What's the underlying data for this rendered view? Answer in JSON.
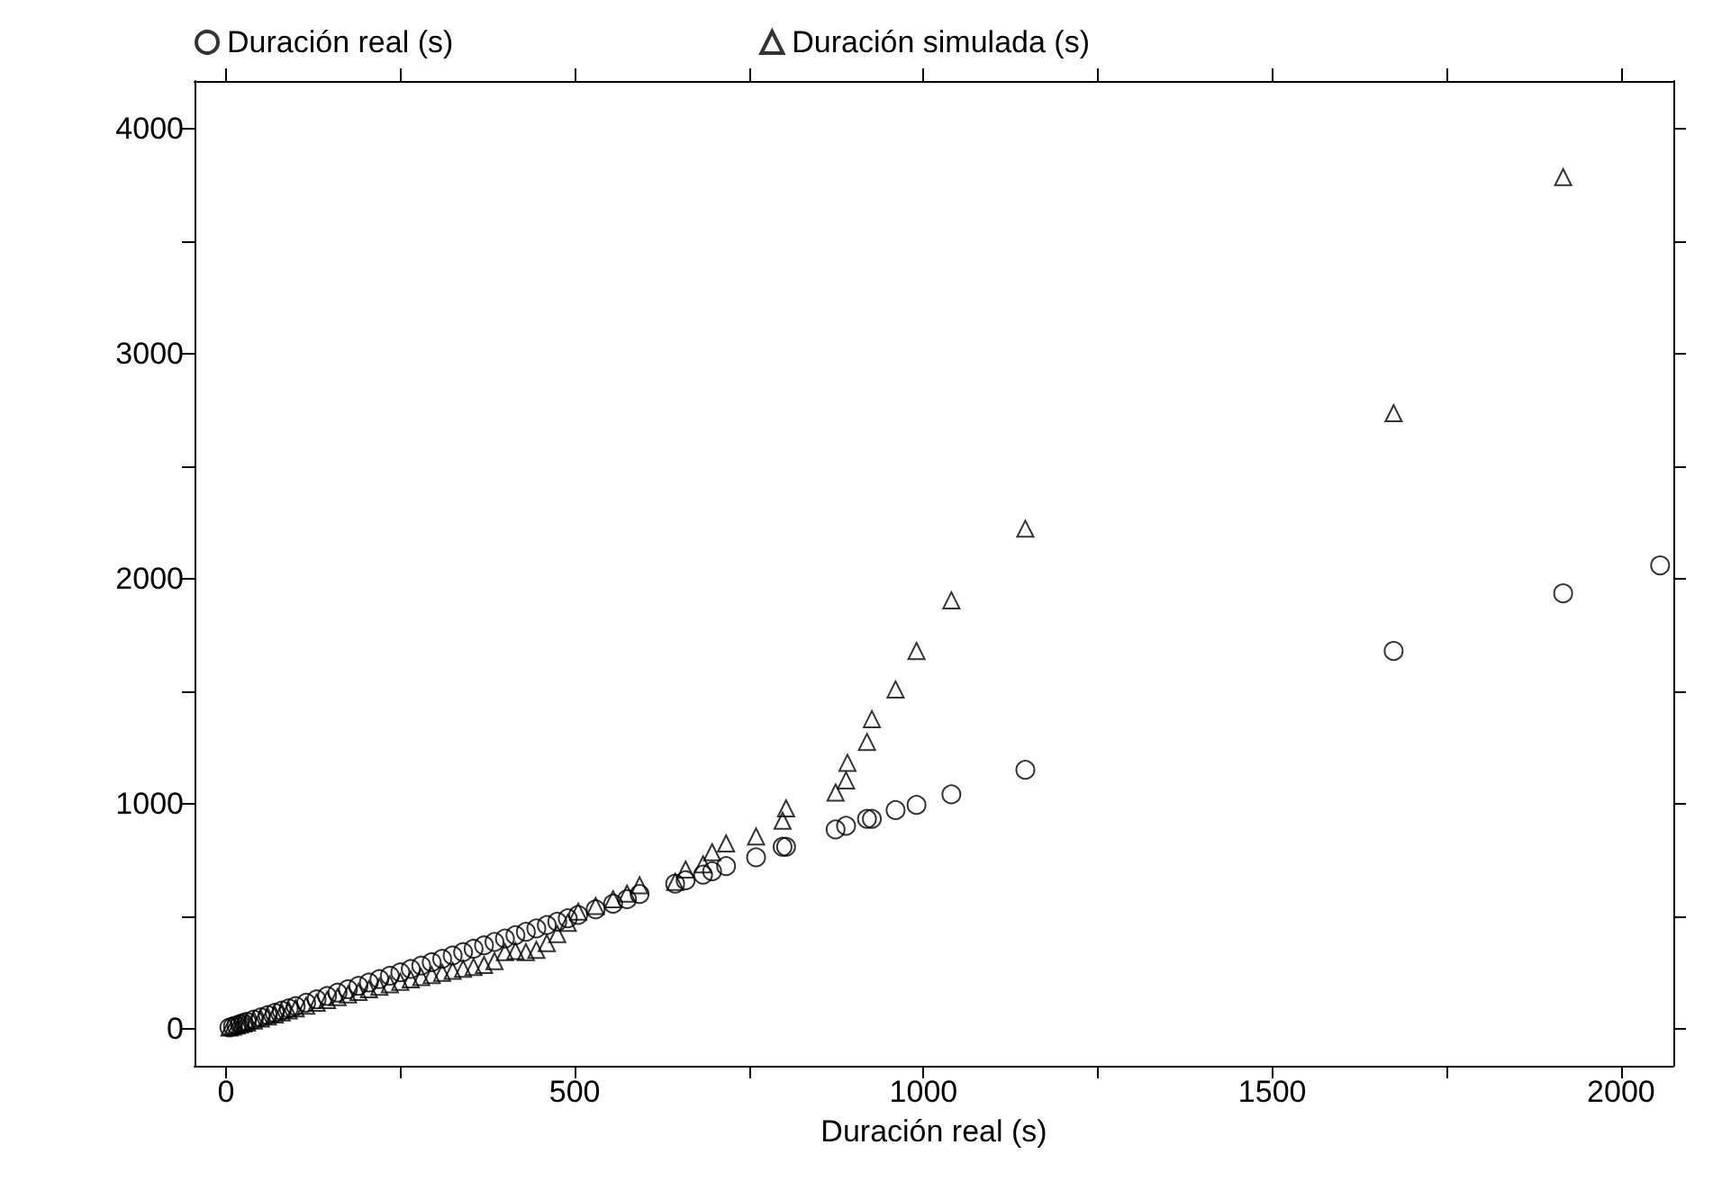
{
  "chart_data": {
    "type": "scatter",
    "xlabel": "Duración real (s)",
    "legend": "top",
    "grid": false,
    "xlim": [
      -45,
      2075
    ],
    "ylim": [
      -165,
      4210
    ],
    "xticks": [
      0,
      {
        "value": 250,
        "label": null
      },
      500,
      {
        "value": 750,
        "label": null
      },
      1000,
      {
        "value": 1250,
        "label": null
      },
      1500,
      {
        "value": 1750,
        "label": null
      },
      2000
    ],
    "yticks": [
      0,
      {
        "value": 500,
        "label": null
      },
      1000,
      {
        "value": 1500,
        "label": null
      },
      2000,
      {
        "value": 2500,
        "label": null
      },
      3000,
      {
        "value": 3500,
        "label": null
      },
      4000
    ],
    "series": [
      {
        "name": "Duración real (s)",
        "color": "#000000",
        "marker": "circle",
        "x": [
          5,
          10,
          15,
          20,
          25,
          30,
          40,
          50,
          60,
          70,
          80,
          90,
          100,
          115,
          130,
          145,
          160,
          175,
          190,
          205,
          220,
          235,
          250,
          265,
          280,
          295,
          310,
          325,
          340,
          355,
          370,
          385,
          400,
          415,
          430,
          445,
          460,
          475,
          490,
          505,
          530,
          555,
          575,
          593,
          644,
          659,
          684,
          697,
          717,
          760,
          798,
          803,
          874,
          889,
          919,
          926,
          960,
          990,
          1040,
          1146,
          1674,
          1917,
          2056
        ],
        "values": [
          5,
          10,
          15,
          20,
          25,
          30,
          40,
          50,
          60,
          70,
          80,
          90,
          100,
          115,
          130,
          145,
          160,
          175,
          190,
          205,
          220,
          235,
          250,
          265,
          280,
          295,
          310,
          325,
          340,
          355,
          370,
          385,
          400,
          415,
          430,
          445,
          460,
          475,
          490,
          505,
          530,
          555,
          575,
          598,
          644,
          659,
          684,
          699,
          722,
          761,
          808,
          808,
          885,
          901,
          932,
          932,
          971,
          994,
          1041,
          1150,
          1678,
          1934,
          2058
        ]
      },
      {
        "name": "Duración simulada (s)",
        "color": "#000000",
        "marker": "triangle",
        "x": [
          5,
          10,
          15,
          20,
          25,
          30,
          40,
          50,
          60,
          70,
          80,
          90,
          100,
          115,
          130,
          145,
          160,
          175,
          190,
          205,
          220,
          235,
          250,
          265,
          280,
          295,
          310,
          325,
          340,
          355,
          370,
          385,
          400,
          415,
          430,
          445,
          460,
          475,
          490,
          505,
          530,
          555,
          575,
          593,
          644,
          659,
          684,
          697,
          717,
          760,
          798,
          803,
          874,
          889,
          891,
          919,
          926,
          960,
          990,
          1040,
          1146,
          1674,
          1917
        ],
        "values": [
          5,
          9,
          14,
          18,
          23,
          27,
          36,
          45,
          54,
          63,
          72,
          81,
          90,
          102,
          115,
          127,
          140,
          152,
          163,
          175,
          186,
          197,
          208,
          219,
          229,
          238,
          248,
          257,
          266,
          274,
          283,
          300,
          340,
          345,
          340,
          350,
          380,
          420,
          470,
          520,
          545,
          575,
          600,
          637,
          652,
          707,
          730,
          784,
          823,
          854,
          924,
          979,
          1049,
          1103,
          1181,
          1274,
          1375,
          1507,
          1678,
          1903,
          2221,
          2734,
          3783
        ]
      }
    ]
  }
}
